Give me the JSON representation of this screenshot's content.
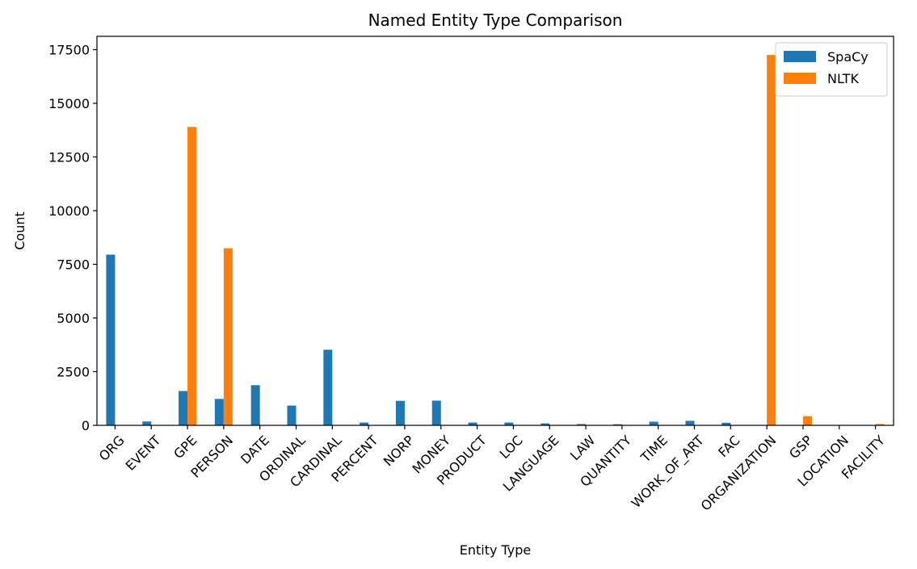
{
  "chart_data": {
    "type": "bar",
    "title": "Named Entity Type Comparison",
    "xlabel": "Entity Type",
    "ylabel": "Count",
    "ylim": [
      0,
      18120
    ],
    "yticks": [
      0,
      2500,
      5000,
      7500,
      10000,
      12500,
      15000,
      17500
    ],
    "grid": false,
    "legend_position": "top-right",
    "categories": [
      "ORG",
      "EVENT",
      "GPE",
      "PERSON",
      "DATE",
      "ORDINAL",
      "CARDINAL",
      "PERCENT",
      "NORP",
      "MONEY",
      "PRODUCT",
      "LOC",
      "LANGUAGE",
      "LAW",
      "QUANTITY",
      "TIME",
      "WORK_OF_ART",
      "FAC",
      "ORGANIZATION",
      "GSP",
      "LOCATION",
      "FACILITY"
    ],
    "series": [
      {
        "name": "SpaCy",
        "color": "#1f77b4",
        "values": [
          7950,
          180,
          1600,
          1230,
          1870,
          920,
          3520,
          130,
          1140,
          1150,
          130,
          130,
          90,
          60,
          50,
          170,
          210,
          120,
          0,
          0,
          0,
          0
        ]
      },
      {
        "name": "NLTK",
        "color": "#ff7f0e",
        "values": [
          0,
          0,
          13900,
          8250,
          0,
          0,
          0,
          0,
          0,
          0,
          0,
          0,
          0,
          0,
          0,
          0,
          0,
          0,
          17250,
          430,
          20,
          60
        ]
      }
    ]
  }
}
